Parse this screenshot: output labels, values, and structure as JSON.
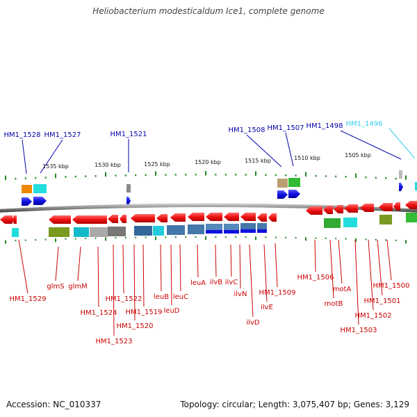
{
  "title": "Heliobacterium modesticaldum Ice1, complete genome",
  "footer": {
    "accession": "Accession: NC_010337",
    "summary": "Topology: circular; Length: 3,075,407 bp; Genes: 3,129"
  },
  "scale_labels": [
    "1535 kbp",
    "1530 kbp",
    "1525 kbp",
    "1520 kbp",
    "1515 kbp",
    "1510 kbp",
    "1505 kbp"
  ],
  "upper_labels": [
    {
      "text": "HM1_1528",
      "color": "#0000aa"
    },
    {
      "text": "HM1_1527",
      "color": "#0000aa"
    },
    {
      "text": "HM1_1521",
      "color": "#0000aa"
    },
    {
      "text": "HM1_1508",
      "color": "#0000aa"
    },
    {
      "text": "HM1_1507",
      "color": "#0000aa"
    },
    {
      "text": "HM1_1498",
      "color": "#0000aa"
    },
    {
      "text": "HM1_1496",
      "color": "#33ccee"
    }
  ],
  "lower_labels": [
    "HM1_1529",
    "glmS",
    "glmM",
    "HM1_1524",
    "HM1_1523",
    "HM1_1522",
    "HM1_1520",
    "HM1_1519",
    "leuB",
    "leuD",
    "leuC",
    "leuA",
    "ilvB",
    "ilvC",
    "ilvN",
    "ilvD",
    "ilvE",
    "HM1_1509",
    "HM1_1506",
    "motB",
    "motA",
    "HM1_1503",
    "HM1_1502",
    "HM1_1501",
    "HM1_1500"
  ],
  "colors": {
    "forward_strand": "#1010e0",
    "reverse_strand": "#ee1111",
    "label_red": "#cc0000",
    "label_blue": "#0000aa",
    "tick_green": "#228822"
  }
}
